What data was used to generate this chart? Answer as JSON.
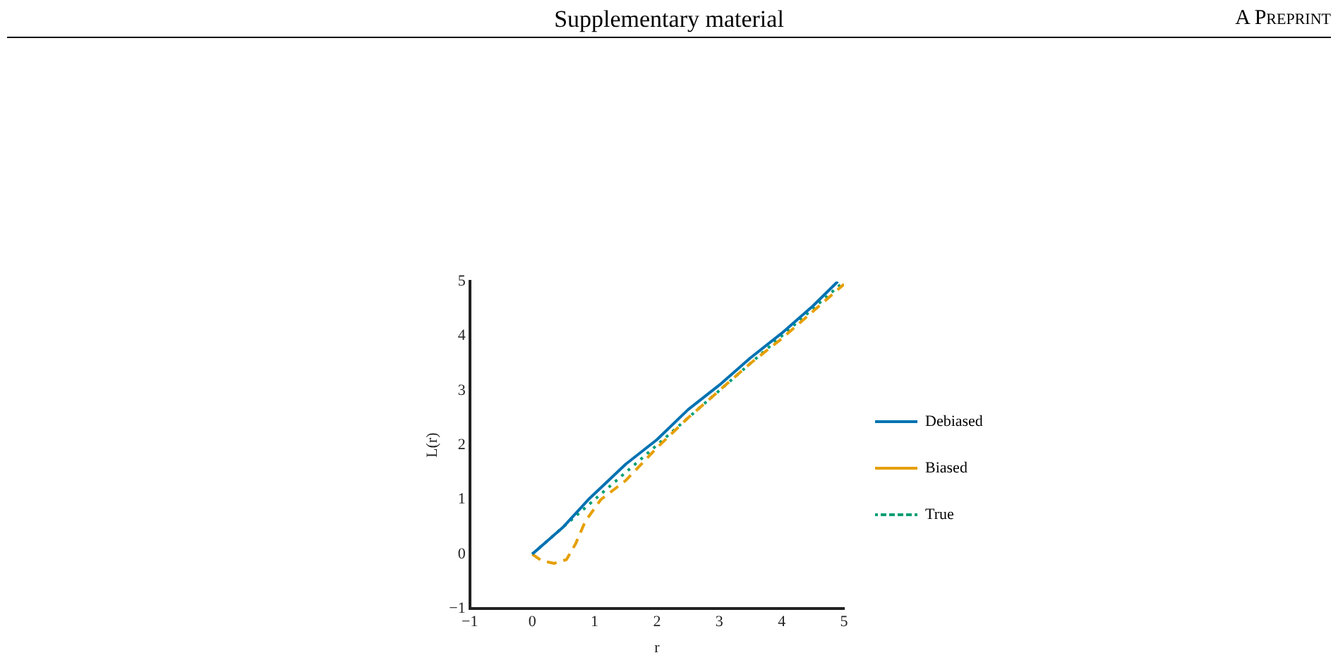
{
  "chart_data": {
    "type": "line",
    "annotations": [
      "Supplementary material",
      "A Preprint"
    ],
    "xlabel": "r",
    "ylabel": "L(r)",
    "xlim": [
      -1,
      5
    ],
    "xticks": [
      -1,
      0,
      1,
      2,
      3,
      4,
      5
    ],
    "ylim": [
      -1,
      5
    ],
    "yticks": [
      -1,
      0,
      1,
      2,
      3,
      4,
      5
    ],
    "grid": false,
    "legend": "right",
    "marker": "none",
    "series": [
      {
        "name": "Debiased",
        "color": "#0072b2",
        "line_style": "solid",
        "x": [
          0,
          0.5,
          0.9,
          1.5,
          2,
          2.5,
          3,
          3.5,
          4,
          4.5,
          4.9
        ],
        "values": [
          0,
          0.5,
          1.0,
          1.65,
          2.1,
          2.65,
          3.1,
          3.6,
          4.05,
          4.55,
          5
        ]
      },
      {
        "name": "Biased",
        "color": "#e69f00",
        "line_style": "dashed",
        "x": [
          0,
          0.15,
          0.35,
          0.55,
          0.7,
          0.85,
          1.1,
          1.5,
          2,
          2.5,
          3,
          3.5,
          4,
          4.5,
          5
        ],
        "values": [
          0,
          -0.12,
          -0.17,
          -0.1,
          0.2,
          0.6,
          1.0,
          1.35,
          1.95,
          2.5,
          3.0,
          3.5,
          3.95,
          4.45,
          4.95
        ]
      },
      {
        "name": "True",
        "color": "#009e73",
        "line_style": "dotted",
        "x": [
          0,
          1,
          2,
          3,
          4,
          5
        ],
        "values": [
          0,
          1,
          2,
          3,
          4,
          5
        ]
      }
    ]
  }
}
